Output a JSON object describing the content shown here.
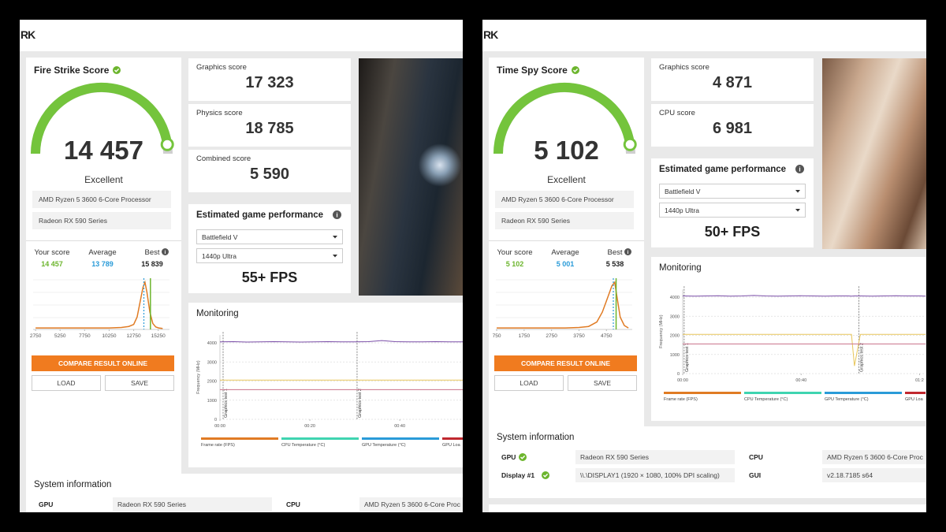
{
  "panels": [
    {
      "logo": "RK",
      "score": {
        "title": "Fire Strike Score",
        "value": "14 457",
        "rating": "Excellent",
        "hardware": [
          "AMD Ryzen 5 3600 6-Core Processor",
          "Radeon RX 590 Series"
        ],
        "stats": [
          {
            "label": "Your score",
            "value": "14 457"
          },
          {
            "label": "Average",
            "value": "13 789"
          },
          {
            "label": "Best",
            "value": "15 839"
          }
        ],
        "distribution": {
          "x": [
            2750,
            4000,
            5250,
            6500,
            7750,
            9000,
            10250,
            11500,
            12250,
            12750,
            13100,
            13400,
            13700,
            13900,
            14100,
            14400,
            14700,
            15000,
            15300,
            15700
          ],
          "values": [
            3,
            3,
            3,
            3,
            3,
            3,
            3,
            4,
            6,
            10,
            25,
            55,
            85,
            95,
            75,
            35,
            12,
            5,
            3,
            2
          ],
          "color": "#e07b24",
          "xlim": [
            2500,
            16400
          ],
          "ylim": [
            0,
            100
          ],
          "xticks": [
            2750,
            5250,
            7750,
            10250,
            12750,
            15250
          ],
          "your_score": 14457,
          "average": 13789
        },
        "buttons": [
          "COMPARE RESULT ONLINE",
          "LOAD",
          "SAVE"
        ]
      },
      "subscores": [
        {
          "label": "Graphics score",
          "value": "17 323"
        },
        {
          "label": "Physics score",
          "value": "18 785"
        },
        {
          "label": "Combined score",
          "value": "5 590"
        }
      ],
      "game": {
        "title": "Estimated game performance",
        "selects": [
          "Battlefield V",
          "1440p Ultra"
        ],
        "fps": "55+ FPS"
      },
      "monitoring": {
        "title": "Monitoring",
        "y_label": "Frequency (MHz)",
        "ylim": [
          0,
          4400
        ],
        "yticks": [
          0,
          1000,
          2000,
          3000,
          4000
        ],
        "xlim": [
          0,
          54
        ],
        "xticks": [
          {
            "value": 0,
            "label": "00:00"
          },
          {
            "value": 20,
            "label": "00:20"
          },
          {
            "value": 40,
            "label": "00:40"
          }
        ],
        "markers": [
          {
            "value": 0.7,
            "label": "Graphics test 1"
          },
          {
            "value": 30.5,
            "label": "Graphics test 2"
          }
        ],
        "x": [
          0,
          3,
          6,
          9,
          12,
          15,
          18,
          21,
          24,
          27,
          30,
          33,
          36,
          39,
          42,
          45,
          48,
          51,
          54
        ],
        "series": [
          {
            "color": "#7b4fa8",
            "values": [
              4050,
              4060,
              4040,
              4050,
              4060,
              4050,
              4040,
              4050,
              4060,
              4050,
              4050,
              4060,
              4120,
              4060,
              4050,
              4050,
              4060,
              4050,
              4050
            ]
          },
          {
            "color": "#e8c65a",
            "values": [
              2050,
              2050,
              2050,
              2050,
              2050,
              2050,
              2050,
              2050,
              2050,
              2050,
              2050,
              2050,
              2050,
              2050,
              2050,
              2050,
              2050,
              2050,
              2050
            ]
          },
          {
            "color": "#c9708a",
            "values": [
              1550,
              1550,
              1550,
              1550,
              1550,
              1550,
              1550,
              1550,
              1550,
              1550,
              1550,
              1550,
              1550,
              1550,
              1550,
              1550,
              1550,
              1550,
              1550
            ]
          }
        ],
        "legend": [
          {
            "name": "Frame rate (FPS)",
            "color": "#e07b24"
          },
          {
            "name": "CPU Temperature (°C)",
            "color": "#3fd4b0"
          },
          {
            "name": "GPU Temperature (°C)",
            "color": "#2a9bd8"
          },
          {
            "name": "GPU Loa",
            "color": "#c0282f"
          }
        ]
      },
      "system": {
        "title": "System information",
        "rows": [
          [
            {
              "label": "GPU",
              "value": "Radeon RX 590 Series"
            },
            {
              "label": "CPU",
              "value": "AMD Ryzen 5 3600 6-Core Proc"
            }
          ]
        ]
      }
    },
    {
      "logo": "RK",
      "score": {
        "title": "Time Spy Score",
        "value": "5 102",
        "rating": "Excellent",
        "hardware": [
          "AMD Ryzen 5 3600 6-Core Processor",
          "Radeon RX 590 Series"
        ],
        "stats": [
          {
            "label": "Your score",
            "value": "5 102"
          },
          {
            "label": "Average",
            "value": "5 001"
          },
          {
            "label": "Best",
            "value": "5 538"
          }
        ],
        "distribution": {
          "x": [
            750,
            1250,
            1750,
            2250,
            2750,
            3250,
            3750,
            4100,
            4400,
            4600,
            4800,
            4950,
            5050,
            5150,
            5250,
            5400,
            5550
          ],
          "values": [
            3,
            3,
            3,
            3,
            3,
            3,
            4,
            6,
            15,
            35,
            65,
            88,
            95,
            60,
            25,
            8,
            3
          ],
          "color": "#e07b24",
          "xlim": [
            720,
            5690
          ],
          "ylim": [
            0,
            100
          ],
          "xticks": [
            750,
            1750,
            2750,
            3750,
            4750
          ],
          "your_score": 5102,
          "average": 5001
        },
        "buttons": [
          "COMPARE RESULT ONLINE",
          "LOAD",
          "SAVE"
        ]
      },
      "subscores": [
        {
          "label": "Graphics score",
          "value": "4 871"
        },
        {
          "label": "CPU score",
          "value": "6 981"
        }
      ],
      "game": {
        "title": "Estimated game performance",
        "selects": [
          "Battlefield V",
          "1440p Ultra"
        ],
        "fps": "50+ FPS"
      },
      "monitoring": {
        "title": "Monitoring",
        "y_label": "Frequency (MHz)",
        "ylim": [
          0,
          4400
        ],
        "yticks": [
          0,
          1000,
          2000,
          3000,
          4000
        ],
        "xlim": [
          0,
          82
        ],
        "xticks": [
          {
            "value": 0,
            "label": "00:00"
          },
          {
            "value": 40,
            "label": "00:40"
          },
          {
            "value": 80,
            "label": "01:2"
          }
        ],
        "markers": [
          {
            "value": 0.5,
            "label": "Graphics test 1"
          },
          {
            "value": 59.5,
            "label": "Graphics test 2"
          }
        ],
        "x": [
          0,
          4,
          8,
          12,
          16,
          20,
          24,
          28,
          32,
          36,
          40,
          44,
          48,
          52,
          56,
          57,
          58,
          60,
          64,
          68,
          72,
          76,
          80,
          82
        ],
        "series": [
          {
            "color": "#7b4fa8",
            "values": [
              4060,
              4050,
              4060,
              4070,
              4050,
              4060,
              4090,
              4060,
              4050,
              4060,
              4070,
              4060,
              4050,
              4060,
              4060,
              4050,
              4060,
              4060,
              4050,
              4060,
              4070,
              4060,
              4060,
              4050
            ]
          },
          {
            "color": "#e8c65a",
            "values": [
              2050,
              2050,
              2050,
              2050,
              2050,
              2050,
              2050,
              2050,
              2050,
              2050,
              2050,
              2050,
              2050,
              2050,
              2050,
              2050,
              400,
              2050,
              2050,
              2050,
              2050,
              2050,
              2050,
              2050
            ]
          },
          {
            "color": "#c9708a",
            "values": [
              1550,
              1550,
              1550,
              1550,
              1550,
              1550,
              1550,
              1550,
              1550,
              1550,
              1550,
              1550,
              1550,
              1550,
              1550,
              1550,
              1550,
              1550,
              1550,
              1550,
              1550,
              1550,
              1550,
              1550
            ]
          }
        ],
        "legend": [
          {
            "name": "Frame rate (FPS)",
            "color": "#e07b24"
          },
          {
            "name": "CPU Temperature (°C)",
            "color": "#3fd4b0"
          },
          {
            "name": "GPU Temperature (°C)",
            "color": "#2a9bd8"
          },
          {
            "name": "GPU Loa",
            "color": "#c0282f"
          }
        ]
      },
      "system": {
        "title": "System information",
        "rows": [
          [
            {
              "label": "GPU",
              "value": "Radeon RX 590 Series"
            },
            {
              "label": "CPU",
              "value": "AMD Ryzen 5 3600 6-Core Proc"
            }
          ],
          [
            {
              "label": "Display #1",
              "value": "\\\\.\\DISPLAY1 (1920 × 1080, 100% DPI scaling)"
            },
            {
              "label": "GUI",
              "value": "v2.18.7185 s64"
            }
          ]
        ]
      }
    }
  ]
}
